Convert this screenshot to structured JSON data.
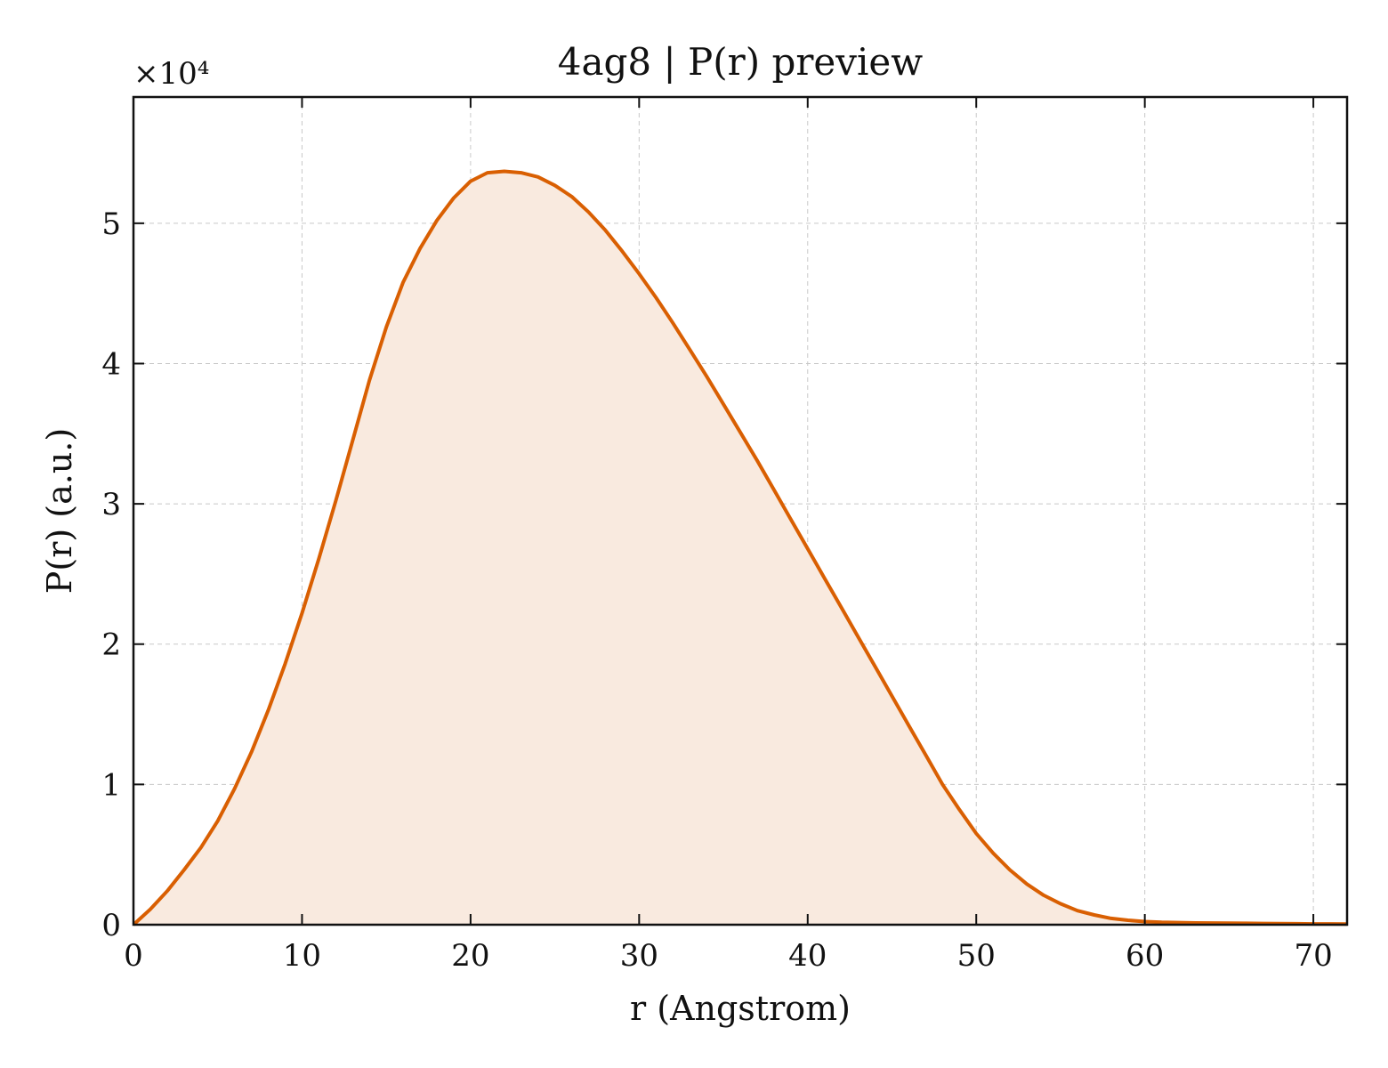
{
  "chart_data": {
    "type": "area",
    "title": "4ag8 | P(r) preview",
    "xlabel": "r (Angstrom)",
    "ylabel": "P(r) (a.u.)",
    "y_multiplier_label": "×10⁴",
    "xlim": [
      0,
      72
    ],
    "ylim": [
      0,
      59000
    ],
    "x_ticks": [
      0,
      10,
      20,
      30,
      40,
      50,
      60,
      70
    ],
    "y_ticks": [
      0,
      10000,
      20000,
      30000,
      40000,
      50000
    ],
    "y_tick_labels": [
      "0",
      "1",
      "2",
      "3",
      "4",
      "5"
    ],
    "grid": true,
    "line_color": "#d95f02",
    "fill_color": "#f9eadf",
    "series": [
      {
        "x": [
          0,
          1,
          2,
          3,
          4,
          5,
          6,
          7,
          8,
          9,
          10,
          11,
          12,
          13,
          14,
          15,
          16,
          17,
          18,
          19,
          20,
          21,
          22,
          23,
          24,
          25,
          26,
          27,
          28,
          29,
          30,
          31,
          32,
          33,
          34,
          35,
          36,
          37,
          38,
          39,
          40,
          41,
          42,
          43,
          44,
          45,
          46,
          47,
          48,
          49,
          50,
          51,
          52,
          53,
          54,
          55,
          56,
          57,
          58,
          59,
          60,
          61,
          62,
          63,
          64,
          65,
          66,
          67,
          68,
          69,
          70,
          71,
          72
        ],
        "values": [
          0,
          1100,
          2400,
          3900,
          5500,
          7400,
          9700,
          12300,
          15300,
          18600,
          22200,
          26100,
          30200,
          34500,
          38800,
          42600,
          45800,
          48200,
          50200,
          51800,
          53000,
          53600,
          53700,
          53600,
          53300,
          52700,
          51900,
          50800,
          49500,
          48000,
          46400,
          44700,
          42900,
          41000,
          39100,
          37100,
          35100,
          33100,
          31000,
          28900,
          26800,
          24700,
          22600,
          20500,
          18400,
          16300,
          14200,
          12100,
          10000,
          8200,
          6500,
          5100,
          3900,
          2900,
          2100,
          1500,
          1000,
          700,
          450,
          320,
          220,
          170,
          150,
          130,
          120,
          110,
          100,
          90,
          80,
          70,
          60,
          55,
          50
        ]
      }
    ]
  }
}
